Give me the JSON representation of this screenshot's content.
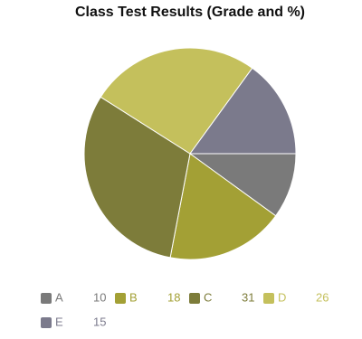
{
  "chart_data": {
    "type": "pie",
    "title": "Class Test Results (Grade and %)",
    "categories": [
      "A",
      "B",
      "C",
      "D",
      "E"
    ],
    "values": [
      10,
      18,
      31,
      26,
      15
    ],
    "colors": [
      "#7a7a7a",
      "#a3a035",
      "#7d7c3a",
      "#c4c05c",
      "#7b7a8c"
    ],
    "start_angle": 0,
    "direction": "clockwise"
  }
}
